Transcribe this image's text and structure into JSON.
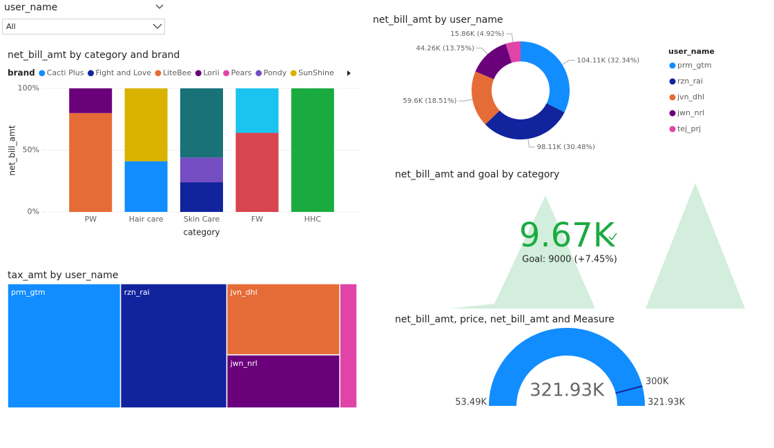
{
  "slicer": {
    "label": "user_name",
    "selection": "All"
  },
  "chart_data": [
    {
      "type": "bar",
      "stacked": true,
      "title": "net_bill_amt by category and brand",
      "legend_title": "brand",
      "x_label": "category",
      "y_label": "net_bill_amt",
      "categories": [
        "PW",
        "Hair care",
        "Skin Care",
        "FW",
        "HHC"
      ],
      "series": [
        {
          "name": "Cacti Plus",
          "color": "#118dff",
          "values": [
            null,
            41,
            null,
            null,
            null
          ]
        },
        {
          "name": "Fight and Love",
          "color": "#12239e",
          "values": [
            null,
            null,
            24,
            null,
            null
          ]
        },
        {
          "name": "LiteBee",
          "color": "#e66c37",
          "values": [
            80,
            null,
            null,
            null,
            null
          ]
        },
        {
          "name": "Lorii",
          "color": "#6b007b",
          "values": [
            20,
            null,
            null,
            null,
            null
          ]
        },
        {
          "name": "Pears",
          "color": "#e044a7",
          "values": [
            null,
            null,
            null,
            null,
            null
          ]
        },
        {
          "name": "Pondy",
          "color": "#744ec2",
          "values": [
            null,
            null,
            20,
            null,
            null
          ]
        },
        {
          "name": "SunShine",
          "color": "#d9b300",
          "values": [
            null,
            59,
            null,
            null,
            null
          ]
        },
        {
          "color": "#197278",
          "values": [
            null,
            null,
            56,
            null,
            null
          ]
        },
        {
          "color": "#d64550",
          "values": [
            null,
            null,
            null,
            64,
            null
          ]
        },
        {
          "color": "#1ac4ee",
          "values": [
            null,
            null,
            null,
            36,
            null
          ]
        },
        {
          "color": "#1aab40",
          "values": [
            null,
            null,
            null,
            null,
            100
          ]
        }
      ],
      "ylim": [
        0,
        100
      ],
      "yticks": [
        {
          "value": 0,
          "label": "0%"
        },
        {
          "value": 50,
          "label": "50%"
        },
        {
          "value": 100,
          "label": "100%"
        }
      ],
      "grid": true
    },
    {
      "type": "pie",
      "title": "net_bill_amt by user_name",
      "legend_title": "user_name",
      "categories": [
        "prm_gtm",
        "rzn_rai",
        "jvn_dhl",
        "jwn_nrl",
        "tej_prj"
      ],
      "values": [
        104110,
        98110,
        59600,
        44260,
        15860
      ],
      "value_labels": [
        "104.11K (32.34%)",
        "98.11K (30.48%)",
        "59.6K (18.51%)",
        "44.26K (13.75%)",
        "15.86K (4.92%)"
      ],
      "colors": [
        "#118dff",
        "#12239e",
        "#e66c37",
        "#6b007b",
        "#e044a7"
      ]
    },
    {
      "type": "kpi",
      "title": "net_bill_amt and goal by category",
      "value": 9670,
      "value_label": "9.67K",
      "goal_label": "Goal: 9000 (+7.45%)",
      "color": "#1aab40"
    },
    {
      "type": "treemap",
      "title": "tax_amt by user_name",
      "categories": [
        "prm_gtm",
        "rzn_rai",
        "jvn_dhl",
        "jwn_nrl",
        null
      ],
      "values": [
        32.3,
        30.4,
        18.5,
        13.8,
        4.9
      ],
      "colors": [
        "#118dff",
        "#12239e",
        "#e66c37",
        "#6b007b",
        "#e044a7"
      ]
    },
    {
      "type": "gauge",
      "title": "net_bill_amt, price, net_bill_amt and Measure",
      "min": 53490,
      "max": 321930,
      "value": 321930,
      "target": 300000,
      "min_label": "53.49K",
      "max_label": "321.93K",
      "value_label": "321.93K",
      "target_label": "300K",
      "color": "#118dff",
      "target_color": "#12239e"
    }
  ]
}
